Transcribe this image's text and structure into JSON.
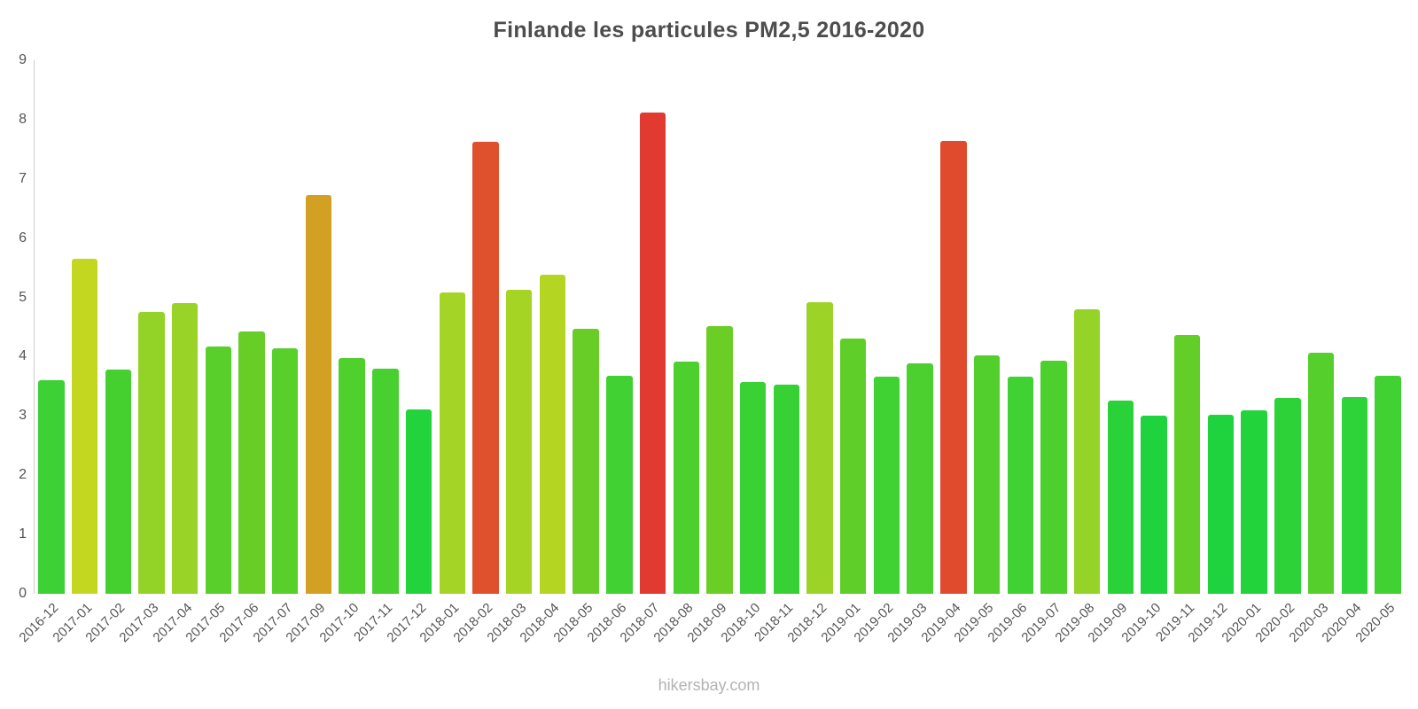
{
  "page": {
    "watermark": "hikersbay.com"
  },
  "style": {
    "title_color": "#4d4d4d",
    "tick_color": "#555555",
    "axis_color": "#cccccc",
    "watermark_color": "#b3b3b3",
    "background": "#ffffff"
  },
  "chart_data": {
    "type": "bar",
    "title": "Finlande les particules PM2,5 2016-2020",
    "xlabel": "",
    "ylabel": "",
    "ylim": [
      0,
      9
    ],
    "yticks": [
      0,
      1,
      2,
      3,
      4,
      5,
      6,
      7,
      8,
      9
    ],
    "grid": false,
    "legend": "none",
    "categories": [
      "2016-12",
      "2017-01",
      "2017-02",
      "2017-03",
      "2017-04",
      "2017-05",
      "2017-06",
      "2017-07",
      "2017-09",
      "2017-10",
      "2017-11",
      "2017-12",
      "2018-01",
      "2018-02",
      "2018-03",
      "2018-04",
      "2018-05",
      "2018-06",
      "2018-07",
      "2018-08",
      "2018-09",
      "2018-10",
      "2018-11",
      "2018-12",
      "2019-01",
      "2019-02",
      "2019-03",
      "2019-04",
      "2019-05",
      "2019-06",
      "2019-07",
      "2019-08",
      "2019-09",
      "2019-10",
      "2019-11",
      "2019-12",
      "2020-01",
      "2020-02",
      "2020-03",
      "2020-04",
      "2020-05"
    ],
    "values": [
      3.6,
      5.65,
      3.78,
      4.75,
      4.9,
      4.17,
      4.42,
      4.14,
      6.73,
      3.98,
      3.8,
      3.11,
      5.08,
      7.62,
      5.13,
      5.38,
      4.47,
      3.68,
      8.12,
      3.92,
      4.51,
      3.57,
      3.53,
      4.92,
      4.3,
      3.66,
      3.89,
      7.64,
      4.02,
      3.66,
      3.93,
      4.8,
      3.26,
      3.0,
      4.37,
      3.02,
      3.09,
      3.3,
      4.07,
      3.32,
      3.68
    ],
    "colors": [
      "#3cd134",
      "#c3d721",
      "#46d030",
      "#93d328",
      "#9ad327",
      "#59cf2b",
      "#66ce27",
      "#58cf2b",
      "#d2a124",
      "#50d02d",
      "#47d030",
      "#23d33c",
      "#a4d425",
      "#df512c",
      "#a6d425",
      "#b5d523",
      "#68ce27",
      "#41d132",
      "#e03a31",
      "#4dd02e",
      "#6ace26",
      "#3ad134",
      "#38d135",
      "#9bd327",
      "#60ce29",
      "#40d132",
      "#4bd02f",
      "#e04b2e",
      "#52cf2d",
      "#40d132",
      "#4dd02e",
      "#95d328",
      "#2ad23a",
      "#1ed33e",
      "#63ce28",
      "#1fd33e",
      "#22d33c",
      "#2dd239",
      "#55cf2c",
      "#2ed239",
      "#41d132"
    ]
  }
}
